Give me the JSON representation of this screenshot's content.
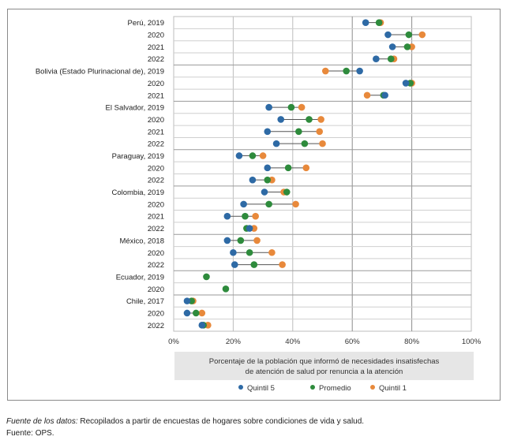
{
  "chart_data": {
    "type": "dot-range",
    "xlabel_lines": [
      "Porcentaje de la población que informó de necesidades insatisfechas",
      "de atención de salud por renuncia a la atención"
    ],
    "xlim": [
      0,
      100
    ],
    "x_ticks": [
      0,
      20,
      40,
      60,
      80,
      100
    ],
    "x_tick_labels": [
      "0%",
      "20%",
      "40%",
      "60%",
      "80%",
      "100%"
    ],
    "series": [
      {
        "key": "q5",
        "name": "Quintil 5",
        "color": "#2e6aa5"
      },
      {
        "key": "prom",
        "name": "Promedio",
        "color": "#2e8b3c"
      },
      {
        "key": "q1",
        "name": "Quintil 1",
        "color": "#e8893b"
      }
    ],
    "rows": [
      {
        "label": "Perú, 2019",
        "q5": 64.5,
        "prom": 69,
        "q1": 69.5,
        "group_start": true
      },
      {
        "label": "2020",
        "q5": 72,
        "prom": 79,
        "q1": 83.5
      },
      {
        "label": "2021",
        "q5": 73.5,
        "prom": 78.5,
        "q1": 80
      },
      {
        "label": "2022",
        "q5": 68,
        "prom": 73,
        "q1": 74
      },
      {
        "label": "Bolivia (Estado Plurinacional de), 2019",
        "q5": 62.5,
        "prom": 58,
        "q1": 51,
        "group_start": true
      },
      {
        "label": "2020",
        "q5": 78,
        "prom": 79.5,
        "q1": 80
      },
      {
        "label": "2021",
        "q5": 71,
        "prom": 70.5,
        "q1": 65
      },
      {
        "label": "El Salvador, 2019",
        "q5": 32,
        "prom": 39.5,
        "q1": 43,
        "group_start": true
      },
      {
        "label": "2020",
        "q5": 36,
        "prom": 45.5,
        "q1": 49.5
      },
      {
        "label": "2021",
        "q5": 31.5,
        "prom": 42,
        "q1": 49
      },
      {
        "label": "2022",
        "q5": 34.5,
        "prom": 44,
        "q1": 50
      },
      {
        "label": "Paraguay, 2019",
        "q5": 22,
        "prom": 26.5,
        "q1": 30,
        "group_start": true
      },
      {
        "label": "2020",
        "q5": 31.5,
        "prom": 38.5,
        "q1": 44.5
      },
      {
        "label": "2022",
        "q5": 26.5,
        "prom": 31.5,
        "q1": 33
      },
      {
        "label": "Colombia, 2019",
        "q5": 30.5,
        "prom": 38,
        "q1": 37,
        "group_start": true
      },
      {
        "label": "2020",
        "q5": 23.5,
        "prom": 32,
        "q1": 41
      },
      {
        "label": "2021",
        "q5": 18,
        "prom": 24,
        "q1": 27.5
      },
      {
        "label": "2022",
        "q5": 25.5,
        "prom": 24.5,
        "q1": 27
      },
      {
        "label": "México, 2018",
        "q5": 18,
        "prom": 22.5,
        "q1": 28,
        "group_start": true
      },
      {
        "label": "2020",
        "q5": 20,
        "prom": 25.5,
        "q1": 33
      },
      {
        "label": "2022",
        "q5": 20.5,
        "prom": 27,
        "q1": 36.5
      },
      {
        "label": "Ecuador, 2019",
        "prom": 11,
        "group_start": true
      },
      {
        "label": "2020",
        "prom": 17.5
      },
      {
        "label": "Chile, 2017",
        "q5": 4.5,
        "prom": 6,
        "q1": 6.5,
        "group_start": true
      },
      {
        "label": "2020",
        "q5": 4.5,
        "prom": 7.5,
        "q1": 9.5
      },
      {
        "label": "2022",
        "q5": 9.5,
        "prom": 10,
        "q1": 11.5
      }
    ]
  },
  "notes": {
    "line1_italic": "Fuente de los datos:",
    "line1_rest": " Recopilados a partir de encuestas de hogares sobre condiciones de vida y salud.",
    "line2": "Fuente: OPS."
  }
}
